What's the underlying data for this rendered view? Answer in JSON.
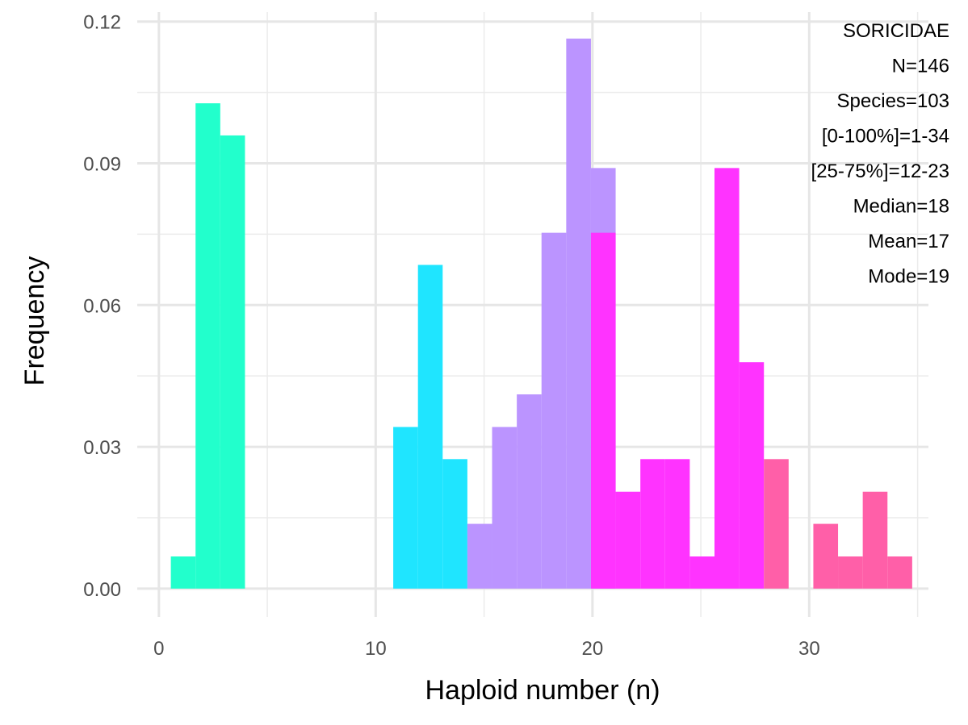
{
  "chart_data": {
    "type": "bar",
    "xlabel": "Haploid number (n)",
    "ylabel": "Frequency",
    "xlim": [
      -1,
      35.5
    ],
    "ylim": [
      -0.006,
      0.122
    ],
    "x_ticks": [
      0,
      10,
      20,
      30
    ],
    "y_ticks": [
      0.0,
      0.03,
      0.06,
      0.09,
      0.12
    ],
    "y_tick_labels": [
      "0.00",
      "0.03",
      "0.06",
      "0.09",
      "0.12"
    ],
    "grid": true,
    "bin_width": 1.14,
    "bins": [
      {
        "x": 1.12,
        "value": 0.0068,
        "color": "#22FFCC"
      },
      {
        "x": 2.26,
        "value": 0.1027,
        "color": "#22FFCC"
      },
      {
        "x": 3.4,
        "value": 0.0959,
        "color": "#22FFCC"
      },
      {
        "x": 11.38,
        "value": 0.0342,
        "color": "#1FE5FF"
      },
      {
        "x": 12.52,
        "value": 0.0685,
        "color": "#1FE5FF"
      },
      {
        "x": 13.66,
        "value": 0.0274,
        "color": "#1FE5FF"
      },
      {
        "x": 14.8,
        "value": 0.0137,
        "color": "#BB94FF"
      },
      {
        "x": 15.94,
        "value": 0.0342,
        "color": "#BB94FF"
      },
      {
        "x": 17.08,
        "value": 0.0411,
        "color": "#BB94FF"
      },
      {
        "x": 18.22,
        "value": 0.0753,
        "color": "#BB94FF"
      },
      {
        "x": 19.36,
        "value": 0.1164,
        "color": "#BB94FF"
      },
      {
        "x": 20.5,
        "value": 0.089,
        "color": "#BB94FF"
      },
      {
        "x": 20.5,
        "value": 0.0753,
        "color": "#FF33FF"
      },
      {
        "x": 21.64,
        "value": 0.0205,
        "color": "#FF33FF"
      },
      {
        "x": 22.78,
        "value": 0.0274,
        "color": "#FF33FF"
      },
      {
        "x": 23.92,
        "value": 0.0274,
        "color": "#FF33FF"
      },
      {
        "x": 25.06,
        "value": 0.0068,
        "color": "#FF33FF"
      },
      {
        "x": 26.2,
        "value": 0.089,
        "color": "#FF33FF"
      },
      {
        "x": 27.34,
        "value": 0.0479,
        "color": "#FF33FF"
      },
      {
        "x": 28.48,
        "value": 0.0274,
        "color": "#FF5FA8"
      },
      {
        "x": 30.76,
        "value": 0.0137,
        "color": "#FF5FA8"
      },
      {
        "x": 31.9,
        "value": 0.0068,
        "color": "#FF5FA8"
      },
      {
        "x": 33.04,
        "value": 0.0205,
        "color": "#FF5FA8"
      },
      {
        "x": 34.18,
        "value": 0.0068,
        "color": "#FF5FA8"
      }
    ],
    "annotations": [
      "SORICIDAE",
      "N=146",
      "Species=103",
      "[0-100%]=1-34",
      "[25-75%]=12-23",
      "Median=18",
      "Mean=17",
      "Mode=19"
    ]
  }
}
